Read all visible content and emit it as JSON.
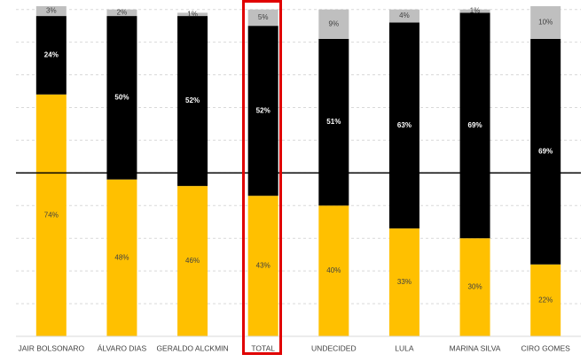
{
  "chart_data": {
    "type": "stacked-bar",
    "categories": [
      "JAIR BOLSONARO",
      "ÁLVARO DIAS",
      "GERALDO ALCKMIN",
      "TOTAL",
      "UNDECIDED",
      "LULA",
      "MARINA SILVA",
      "CIRO GOMES"
    ],
    "series": [
      {
        "color": "#ffc000",
        "label_color": "#404040",
        "values": [
          74,
          48,
          46,
          43,
          40,
          33,
          30,
          22
        ],
        "value_labels": [
          "74%",
          "48%",
          "46%",
          "43%",
          "40%",
          "33%",
          "30%",
          "22%"
        ]
      },
      {
        "color": "#000000",
        "label_color": "#ffffff",
        "values": [
          24,
          50,
          52,
          52,
          51,
          63,
          69,
          69
        ],
        "value_labels": [
          "24%",
          "50%",
          "52%",
          "52%",
          "51%",
          "63%",
          "69%",
          "69%"
        ]
      },
      {
        "color": "#bfbfbf",
        "label_color": "#404040",
        "values": [
          3,
          2,
          1,
          5,
          9,
          4,
          1,
          10
        ],
        "value_labels": [
          "3%",
          "2%",
          "1%",
          "5%",
          "9%",
          "4%",
          "1%",
          "10%"
        ]
      }
    ],
    "ylim": [
      0,
      101
    ],
    "yticks": [
      0,
      10,
      20,
      30,
      40,
      50,
      60,
      70,
      80,
      90,
      100
    ],
    "grid": true,
    "reference_line": 50
  }
}
